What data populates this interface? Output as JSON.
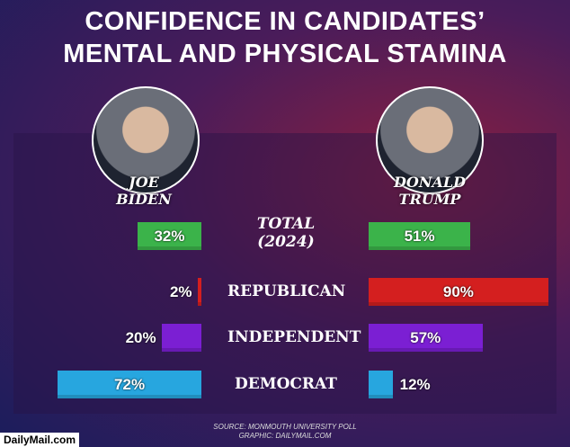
{
  "chart_data": {
    "type": "butterfly-bar",
    "title": "CONFIDENCE IN CANDIDATES’ MENTAL AND PHYSICAL STAMINA",
    "categories": [
      "TOTAL (2024)",
      "REPUBLICAN",
      "INDEPENDENT",
      "DEMOCRAT"
    ],
    "colors": [
      "#3bb34a",
      "#d41f1f",
      "#7b1fd3",
      "#27a6df"
    ],
    "series": [
      {
        "name": "JOE BIDEN",
        "values": [
          32,
          2,
          20,
          72
        ],
        "value_labels": [
          "32%",
          "2%",
          "20%",
          "72%"
        ]
      },
      {
        "name": "DONALD TRUMP",
        "values": [
          51,
          90,
          57,
          12
        ],
        "value_labels": [
          "51%",
          "90%",
          "57%",
          "12%"
        ]
      }
    ],
    "source": "SOURCE: MONMOUTH UNIVERSITY POLL",
    "credit": "GRAPHIC: DAILYMAIL.COM",
    "watermark": "DailyMail.com"
  }
}
